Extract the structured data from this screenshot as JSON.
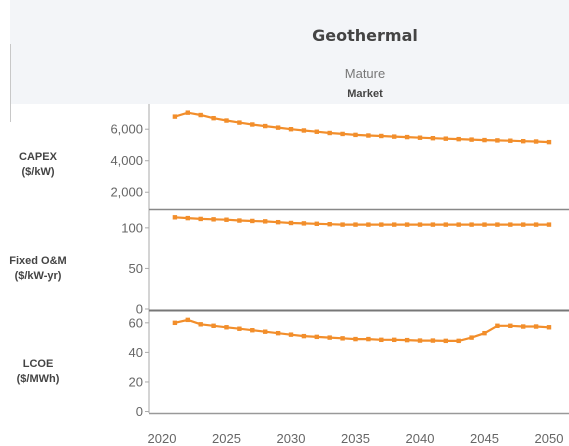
{
  "header": {
    "title": "Geothermal",
    "subtitle": "Mature",
    "subtitle2": "Market"
  },
  "colors": {
    "series": "#f28e2b",
    "axis": "#aaaaaa",
    "divider": "#888888"
  },
  "chart_data": [
    {
      "type": "line",
      "label": "CAPEX\n($/kW)",
      "x": [
        2021,
        2022,
        2023,
        2024,
        2025,
        2026,
        2027,
        2028,
        2029,
        2030,
        2031,
        2032,
        2033,
        2034,
        2035,
        2036,
        2037,
        2038,
        2039,
        2040,
        2041,
        2042,
        2043,
        2044,
        2045,
        2046,
        2047,
        2048,
        2049,
        2050
      ],
      "values": [
        6800,
        7050,
        6900,
        6700,
        6550,
        6420,
        6300,
        6200,
        6100,
        6000,
        5920,
        5840,
        5760,
        5700,
        5640,
        5600,
        5570,
        5530,
        5500,
        5460,
        5430,
        5400,
        5370,
        5340,
        5310,
        5290,
        5270,
        5240,
        5220,
        5180
      ],
      "ylim": [
        1000,
        7600
      ],
      "yticks": [
        2000,
        4000,
        6000
      ],
      "ytick_labels": [
        "2,000",
        "4,000",
        "6,000"
      ]
    },
    {
      "type": "line",
      "label": "Fixed O&M\n($/kW-yr)",
      "x": [
        2021,
        2022,
        2023,
        2024,
        2025,
        2026,
        2027,
        2028,
        2029,
        2030,
        2031,
        2032,
        2033,
        2034,
        2035,
        2036,
        2037,
        2038,
        2039,
        2040,
        2041,
        2042,
        2043,
        2044,
        2045,
        2046,
        2047,
        2048,
        2049,
        2050
      ],
      "values": [
        113,
        112,
        111,
        110.5,
        110,
        109,
        108.5,
        108,
        107,
        106,
        105.5,
        105,
        104.5,
        104,
        104,
        104,
        104,
        104,
        104,
        104,
        104,
        104,
        104,
        104,
        104,
        104,
        104,
        104,
        104,
        104
      ],
      "ylim": [
        0,
        122
      ],
      "yticks": [
        0,
        50,
        100
      ],
      "ytick_labels": [
        "0",
        "50",
        "100"
      ]
    },
    {
      "type": "line",
      "label": "LCOE\n($/MWh)",
      "x": [
        2021,
        2022,
        2023,
        2024,
        2025,
        2026,
        2027,
        2028,
        2029,
        2030,
        2031,
        2032,
        2033,
        2034,
        2035,
        2036,
        2037,
        2038,
        2039,
        2040,
        2041,
        2042,
        2043,
        2044,
        2045,
        2046,
        2047,
        2048,
        2049,
        2050
      ],
      "values": [
        60,
        62,
        59,
        58,
        57,
        56,
        55,
        54,
        53,
        52,
        51,
        50.5,
        50,
        49.5,
        49,
        49,
        48.5,
        48.5,
        48.3,
        48,
        48,
        47.8,
        47.8,
        50,
        53,
        58,
        58,
        57.5,
        57.5,
        57
      ],
      "ylim": [
        -1,
        68
      ],
      "yticks": [
        0,
        20,
        40,
        60
      ],
      "ytick_labels": [
        "0",
        "20",
        "40",
        "60"
      ]
    }
  ],
  "x_axis": {
    "ticks": [
      2020,
      2025,
      2030,
      2035,
      2040,
      2045,
      2050
    ],
    "tick_labels": [
      "2020",
      "2025",
      "2030",
      "2035",
      "2040",
      "2045",
      "2050"
    ]
  }
}
